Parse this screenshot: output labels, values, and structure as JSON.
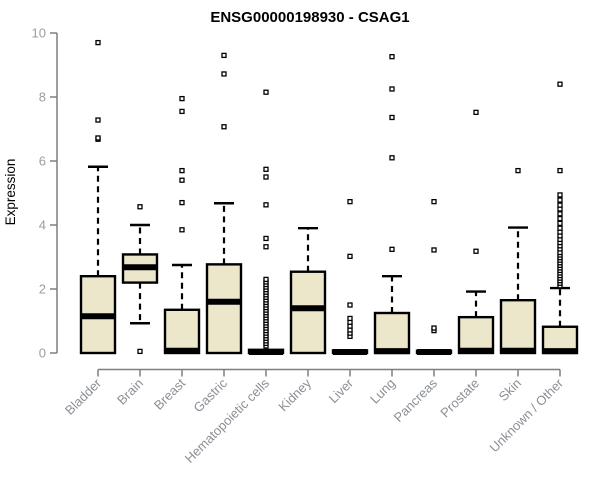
{
  "page": {
    "background": "#ffffff"
  },
  "chart_data": {
    "type": "boxplot",
    "title": "ENSG00000198930 - CSAG1",
    "xlabel": "",
    "ylabel": "Expression",
    "ylim": [
      0,
      10
    ],
    "yticks": [
      0,
      2,
      4,
      6,
      8,
      10
    ],
    "grid": false,
    "legend": "none",
    "box_fill": "#ECE6CB",
    "box_stroke": "#000000",
    "axis_color": "#7f7f7f",
    "tick_label_color": "#999da3",
    "title_color": "#000000",
    "categories": [
      "Bladder",
      "Brain",
      "Breast",
      "Gastric",
      "Hematopoietic cells",
      "Kidney",
      "Liver",
      "Lung",
      "Pancreas",
      "Prostate",
      "Skin",
      "Unknown / Other"
    ],
    "series": [
      {
        "name": "Bladder",
        "whisker_low": 0,
        "q1": 0,
        "median": 1.15,
        "q3": 2.4,
        "whisker_high": 5.82,
        "outliers": [
          6.68,
          6.72,
          7.28,
          9.7
        ]
      },
      {
        "name": "Brain",
        "whisker_low": 0.93,
        "q1": 2.2,
        "median": 2.68,
        "q3": 3.08,
        "whisker_high": 4.0,
        "outliers": [
          0.05,
          4.57
        ]
      },
      {
        "name": "Breast",
        "whisker_low": 0,
        "q1": 0,
        "median": 0.07,
        "q3": 1.35,
        "whisker_high": 2.75,
        "outliers": [
          3.85,
          4.7,
          5.4,
          5.7,
          7.55,
          7.95
        ]
      },
      {
        "name": "Gastric",
        "whisker_low": 0,
        "q1": 0,
        "median": 1.6,
        "q3": 2.77,
        "whisker_high": 4.68,
        "outliers": [
          7.07,
          8.72,
          9.3
        ]
      },
      {
        "name": "Hematopoietic cells",
        "whisker_low": 0,
        "q1": 0,
        "median": 0.03,
        "q3": 0.1,
        "whisker_high": 0.12,
        "outliers": [
          0.22,
          0.3,
          0.38,
          0.46,
          0.54,
          0.62,
          0.7,
          0.78,
          0.86,
          0.94,
          1.02,
          1.1,
          1.18,
          1.26,
          1.34,
          1.42,
          1.5,
          1.58,
          1.66,
          1.74,
          1.82,
          1.9,
          1.98,
          2.06,
          2.14,
          2.22,
          2.3,
          3.32,
          3.58,
          4.63,
          5.5,
          5.74,
          8.15
        ]
      },
      {
        "name": "Kidney",
        "whisker_low": 0,
        "q1": 0,
        "median": 1.4,
        "q3": 2.54,
        "whisker_high": 3.9,
        "outliers": []
      },
      {
        "name": "Liver",
        "whisker_low": 0,
        "q1": 0,
        "median": 0.03,
        "q3": 0.08,
        "whisker_high": 0.1,
        "outliers": [
          0.52,
          0.62,
          0.72,
          0.84,
          0.96,
          1.08,
          1.5,
          3.02,
          4.73
        ]
      },
      {
        "name": "Lung",
        "whisker_low": 0,
        "q1": 0,
        "median": 0.06,
        "q3": 1.25,
        "whisker_high": 2.4,
        "outliers": [
          3.24,
          6.1,
          7.36,
          8.25,
          9.26
        ]
      },
      {
        "name": "Pancreas",
        "whisker_low": 0,
        "q1": 0,
        "median": 0.03,
        "q3": 0.07,
        "whisker_high": 0.08,
        "outliers": [
          0.7,
          0.78,
          3.22,
          4.73
        ]
      },
      {
        "name": "Prostate",
        "whisker_low": 0,
        "q1": 0,
        "median": 0.07,
        "q3": 1.12,
        "whisker_high": 1.92,
        "outliers": [
          3.18,
          7.52
        ]
      },
      {
        "name": "Skin",
        "whisker_low": 0,
        "q1": 0,
        "median": 0.07,
        "q3": 1.65,
        "whisker_high": 3.92,
        "outliers": [
          5.7
        ]
      },
      {
        "name": "Unknown / Other",
        "whisker_low": 0,
        "q1": 0,
        "median": 0.06,
        "q3": 0.82,
        "whisker_high": 2.03,
        "outliers": [
          2.1,
          2.18,
          2.26,
          2.34,
          2.42,
          2.5,
          2.58,
          2.66,
          2.74,
          2.82,
          2.9,
          2.98,
          3.06,
          3.14,
          3.25,
          3.35,
          3.45,
          3.55,
          3.66,
          3.78,
          3.9,
          4.05,
          4.2,
          4.35,
          4.5,
          4.62,
          4.78,
          4.94,
          5.7,
          8.4
        ]
      }
    ]
  }
}
